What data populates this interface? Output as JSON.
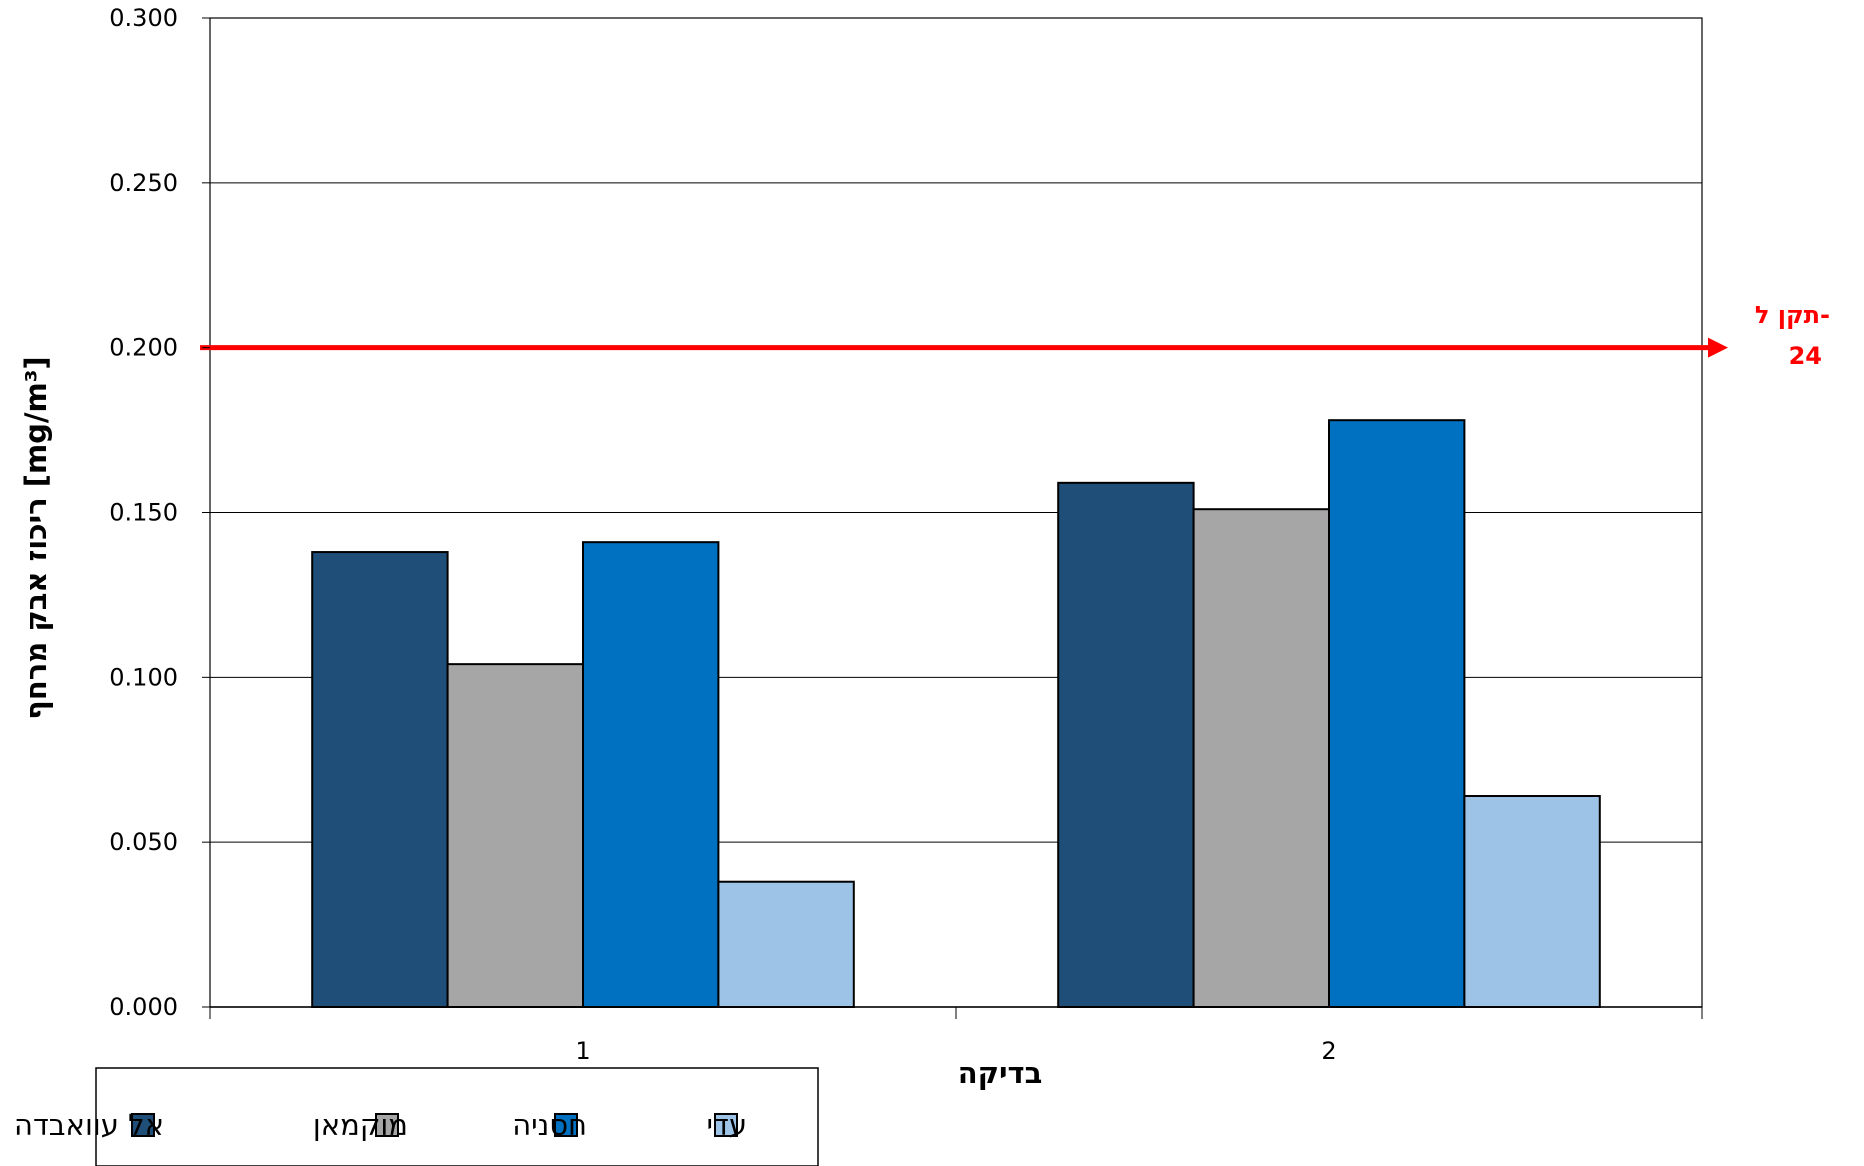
{
  "chart_data": {
    "type": "bar",
    "categories": [
      "1",
      "2"
    ],
    "series": [
      {
        "name": "אל עוואבדה",
        "color": "#1f4e79",
        "values": [
          0.138,
          0.159
        ]
      },
      {
        "name": "מוקמאן",
        "color": "#a6a6a6",
        "values": [
          0.104,
          0.151
        ]
      },
      {
        "name": "חסניה",
        "color": "#0070c0",
        "values": [
          0.141,
          0.178
        ]
      },
      {
        "name": "עדי",
        "color": "#9dc3e6",
        "values": [
          0.038,
          0.064
        ]
      }
    ],
    "xlabel": "בדיקה",
    "ylabel": "ריכוז אבק מרחף [mg/m³]",
    "ylim": [
      0,
      0.3
    ],
    "yticks": [
      "0.000",
      "0.050",
      "0.100",
      "0.150",
      "0.200",
      "0.250",
      "0.300"
    ],
    "grid": true,
    "legend_position": "bottom-left",
    "reference_line": {
      "value": 0.2,
      "color": "#ff0000",
      "label_line1": "תקן ל-",
      "label_line2": "24"
    }
  }
}
